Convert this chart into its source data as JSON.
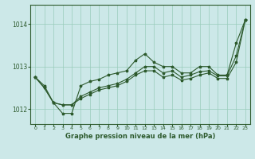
{
  "xlabel": "Graphe pression niveau de la mer (hPa)",
  "bg_color": "#cce8e8",
  "grid_color": "#99ccbb",
  "line_color": "#2d5a2d",
  "ylim": [
    1011.65,
    1014.45
  ],
  "xlim": [
    -0.5,
    23.5
  ],
  "yticks": [
    1012,
    1013,
    1014
  ],
  "xticks": [
    0,
    1,
    2,
    3,
    4,
    5,
    6,
    7,
    8,
    9,
    10,
    11,
    12,
    13,
    14,
    15,
    16,
    17,
    18,
    19,
    20,
    21,
    22,
    23
  ],
  "line1": [
    1012.75,
    1012.55,
    1012.15,
    1011.9,
    1011.9,
    1012.55,
    1012.65,
    1012.7,
    1012.8,
    1012.85,
    1012.9,
    1013.15,
    1013.3,
    1013.1,
    1013.0,
    1013.0,
    1012.85,
    1012.85,
    1013.0,
    1013.0,
    1012.8,
    1012.8,
    1013.55,
    1014.1
  ],
  "line2": [
    1012.75,
    1012.5,
    1012.15,
    1012.1,
    1012.1,
    1012.3,
    1012.4,
    1012.5,
    1012.55,
    1012.6,
    1012.7,
    1012.85,
    1013.0,
    1013.0,
    1012.85,
    1012.9,
    1012.75,
    1012.8,
    1012.88,
    1012.9,
    1012.78,
    1012.78,
    1013.25,
    1014.1
  ],
  "line3": [
    1012.75,
    1012.5,
    1012.15,
    1012.1,
    1012.1,
    1012.25,
    1012.35,
    1012.45,
    1012.5,
    1012.55,
    1012.65,
    1012.8,
    1012.9,
    1012.9,
    1012.75,
    1012.8,
    1012.68,
    1012.72,
    1012.8,
    1012.85,
    1012.72,
    1012.72,
    1013.1,
    1014.1
  ]
}
